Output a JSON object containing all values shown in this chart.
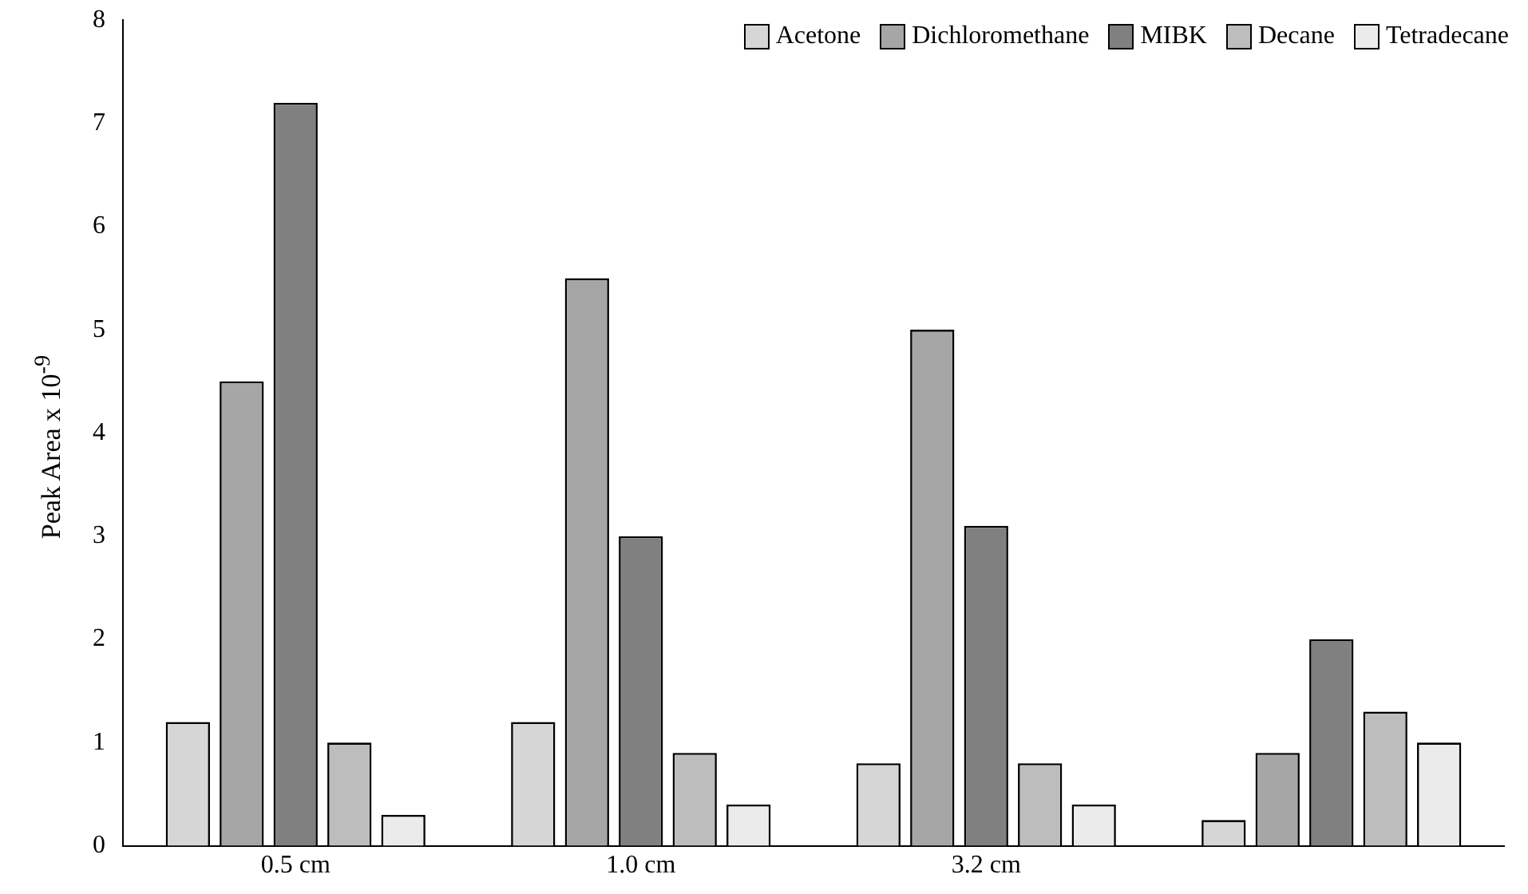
{
  "chart_data": {
    "type": "bar",
    "ylabel": "Peak Area x 10$^{-9}$",
    "categories": [
      "0.5 cm",
      "1.0 cm",
      "3.2 cm",
      null
    ],
    "series": [
      {
        "name": "Acetone",
        "color": "#d6d6d6",
        "values": [
          1.2,
          1.2,
          0.8,
          0.25
        ]
      },
      {
        "name": "Dichloromethane",
        "color": "#a6a6a6",
        "values": [
          4.5,
          5.5,
          5.0,
          0.9
        ]
      },
      {
        "name": "MIBK",
        "color": "#808080",
        "values": [
          7.2,
          3.0,
          3.1,
          2.0
        ]
      },
      {
        "name": "Decane",
        "color": "#bdbdbd",
        "values": [
          1.0,
          0.9,
          0.8,
          1.3
        ]
      },
      {
        "name": "Tetradecane",
        "color": "#ebebeb",
        "values": [
          0.3,
          0.4,
          0.4,
          1.0
        ]
      }
    ],
    "ylim": [
      0,
      8
    ],
    "yticks": [
      0,
      1,
      2,
      3,
      4,
      5,
      6,
      7,
      8
    ],
    "grid": false,
    "legend": "top right"
  }
}
